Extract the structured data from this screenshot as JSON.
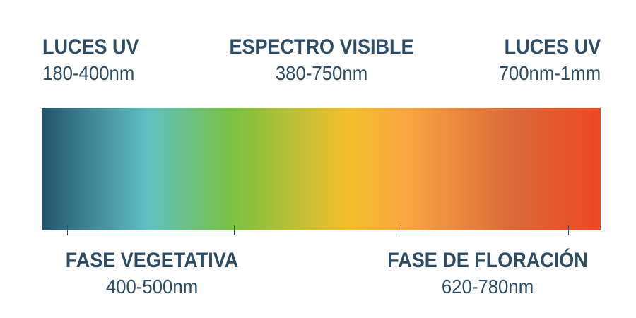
{
  "colors": {
    "text": "#2e4d65",
    "gradient_stops": [
      "#25546d",
      "#5fc1c3",
      "#7ac142",
      "#f6be2c",
      "#f8a441",
      "#db6a38",
      "#ee4723"
    ]
  },
  "top_labels": {
    "uv_left": {
      "title": "LUCES UV",
      "range": "180-400nm"
    },
    "visible": {
      "title": "ESPECTRO VISIBLE",
      "range": "380-750nm"
    },
    "uv_right": {
      "title": "LUCES UV",
      "range": "700nm-1mm"
    }
  },
  "bottom_labels": {
    "vegetative": {
      "title": "FASE VEGETATIVA",
      "range": "400-500nm"
    },
    "flowering": {
      "title": "FASE DE FLORACIÓN",
      "range": "620-780nm"
    }
  }
}
